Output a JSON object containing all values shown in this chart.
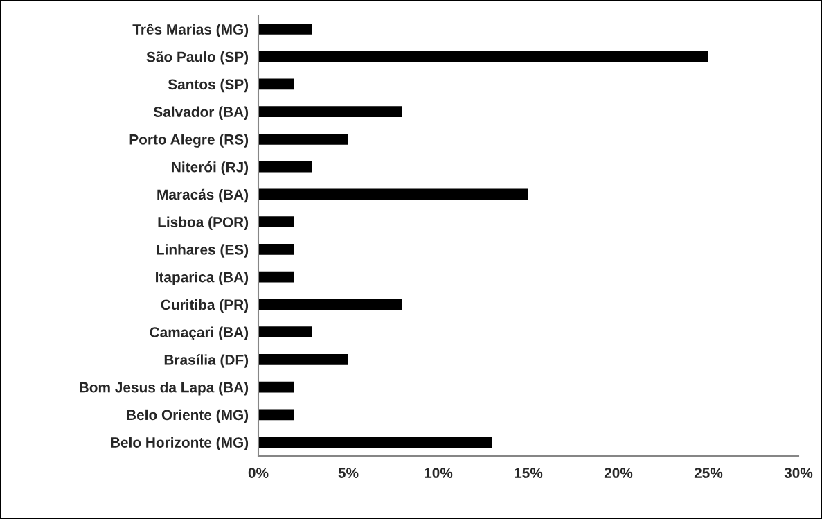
{
  "chart_data": {
    "type": "bar",
    "orientation": "horizontal",
    "categories": [
      "Três Marias (MG)",
      "São Paulo (SP)",
      "Santos (SP)",
      "Salvador (BA)",
      "Porto Alegre (RS)",
      "Niterói (RJ)",
      "Maracás (BA)",
      "Lisboa (POR)",
      "Linhares (ES)",
      "Itaparica (BA)",
      "Curitiba (PR)",
      "Camaçari (BA)",
      "Brasília (DF)",
      "Bom Jesus da Lapa (BA)",
      "Belo Oriente (MG)",
      "Belo Horizonte (MG)"
    ],
    "values": [
      3,
      25,
      2,
      8,
      5,
      3,
      15,
      2,
      2,
      2,
      8,
      3,
      5,
      2,
      2,
      13
    ],
    "color": "#000000",
    "xlim": [
      0,
      30
    ],
    "xticks": [
      {
        "value": 0,
        "label": "0%"
      },
      {
        "value": 5,
        "label": "5%"
      },
      {
        "value": 10,
        "label": "10%"
      },
      {
        "value": 15,
        "label": "15%"
      },
      {
        "value": 20,
        "label": "20%"
      },
      {
        "value": 25,
        "label": "25%"
      },
      {
        "value": 30,
        "label": "30%"
      }
    ],
    "grid": false
  }
}
